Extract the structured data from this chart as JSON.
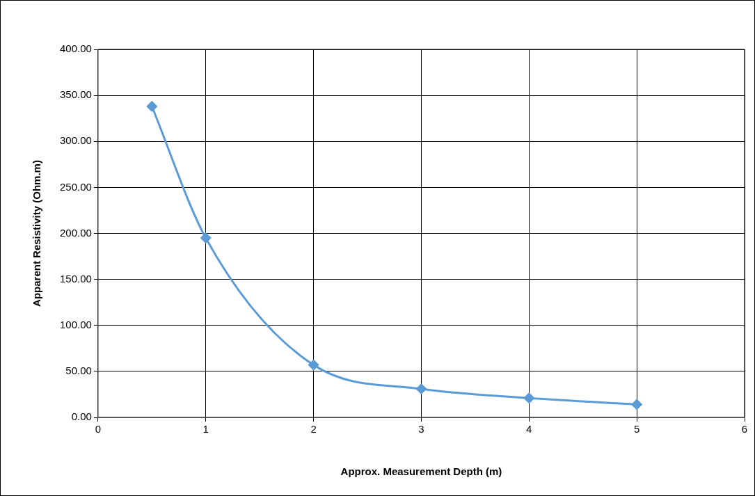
{
  "chart_data": {
    "type": "line",
    "xlabel": "Approx. Measurement Depth (m)",
    "ylabel": "Apparent Resistivity (Ohm.m)",
    "x": [
      0.5,
      1,
      2,
      3,
      4,
      5
    ],
    "series": [
      {
        "color": "#5b9bd5",
        "values": [
          338,
          195,
          57,
          31,
          21,
          14
        ]
      }
    ],
    "xlim": [
      0,
      6
    ],
    "xticks": [
      0,
      1,
      2,
      3,
      4,
      5,
      6
    ],
    "ylim": [
      0,
      400
    ],
    "yticks": [
      {
        "value": 0,
        "label": "0.00"
      },
      {
        "value": 50,
        "label": "50.00"
      },
      {
        "value": 100,
        "label": "100.00"
      },
      {
        "value": 150,
        "label": "150.00"
      },
      {
        "value": 200,
        "label": "200.00"
      },
      {
        "value": 250,
        "label": "250.00"
      },
      {
        "value": 300,
        "label": "300.00"
      },
      {
        "value": 350,
        "label": "350.00"
      },
      {
        "value": 400,
        "label": "400.00"
      }
    ],
    "grid": true,
    "marker": "diamond",
    "line_style": "solid",
    "legend": false
  }
}
